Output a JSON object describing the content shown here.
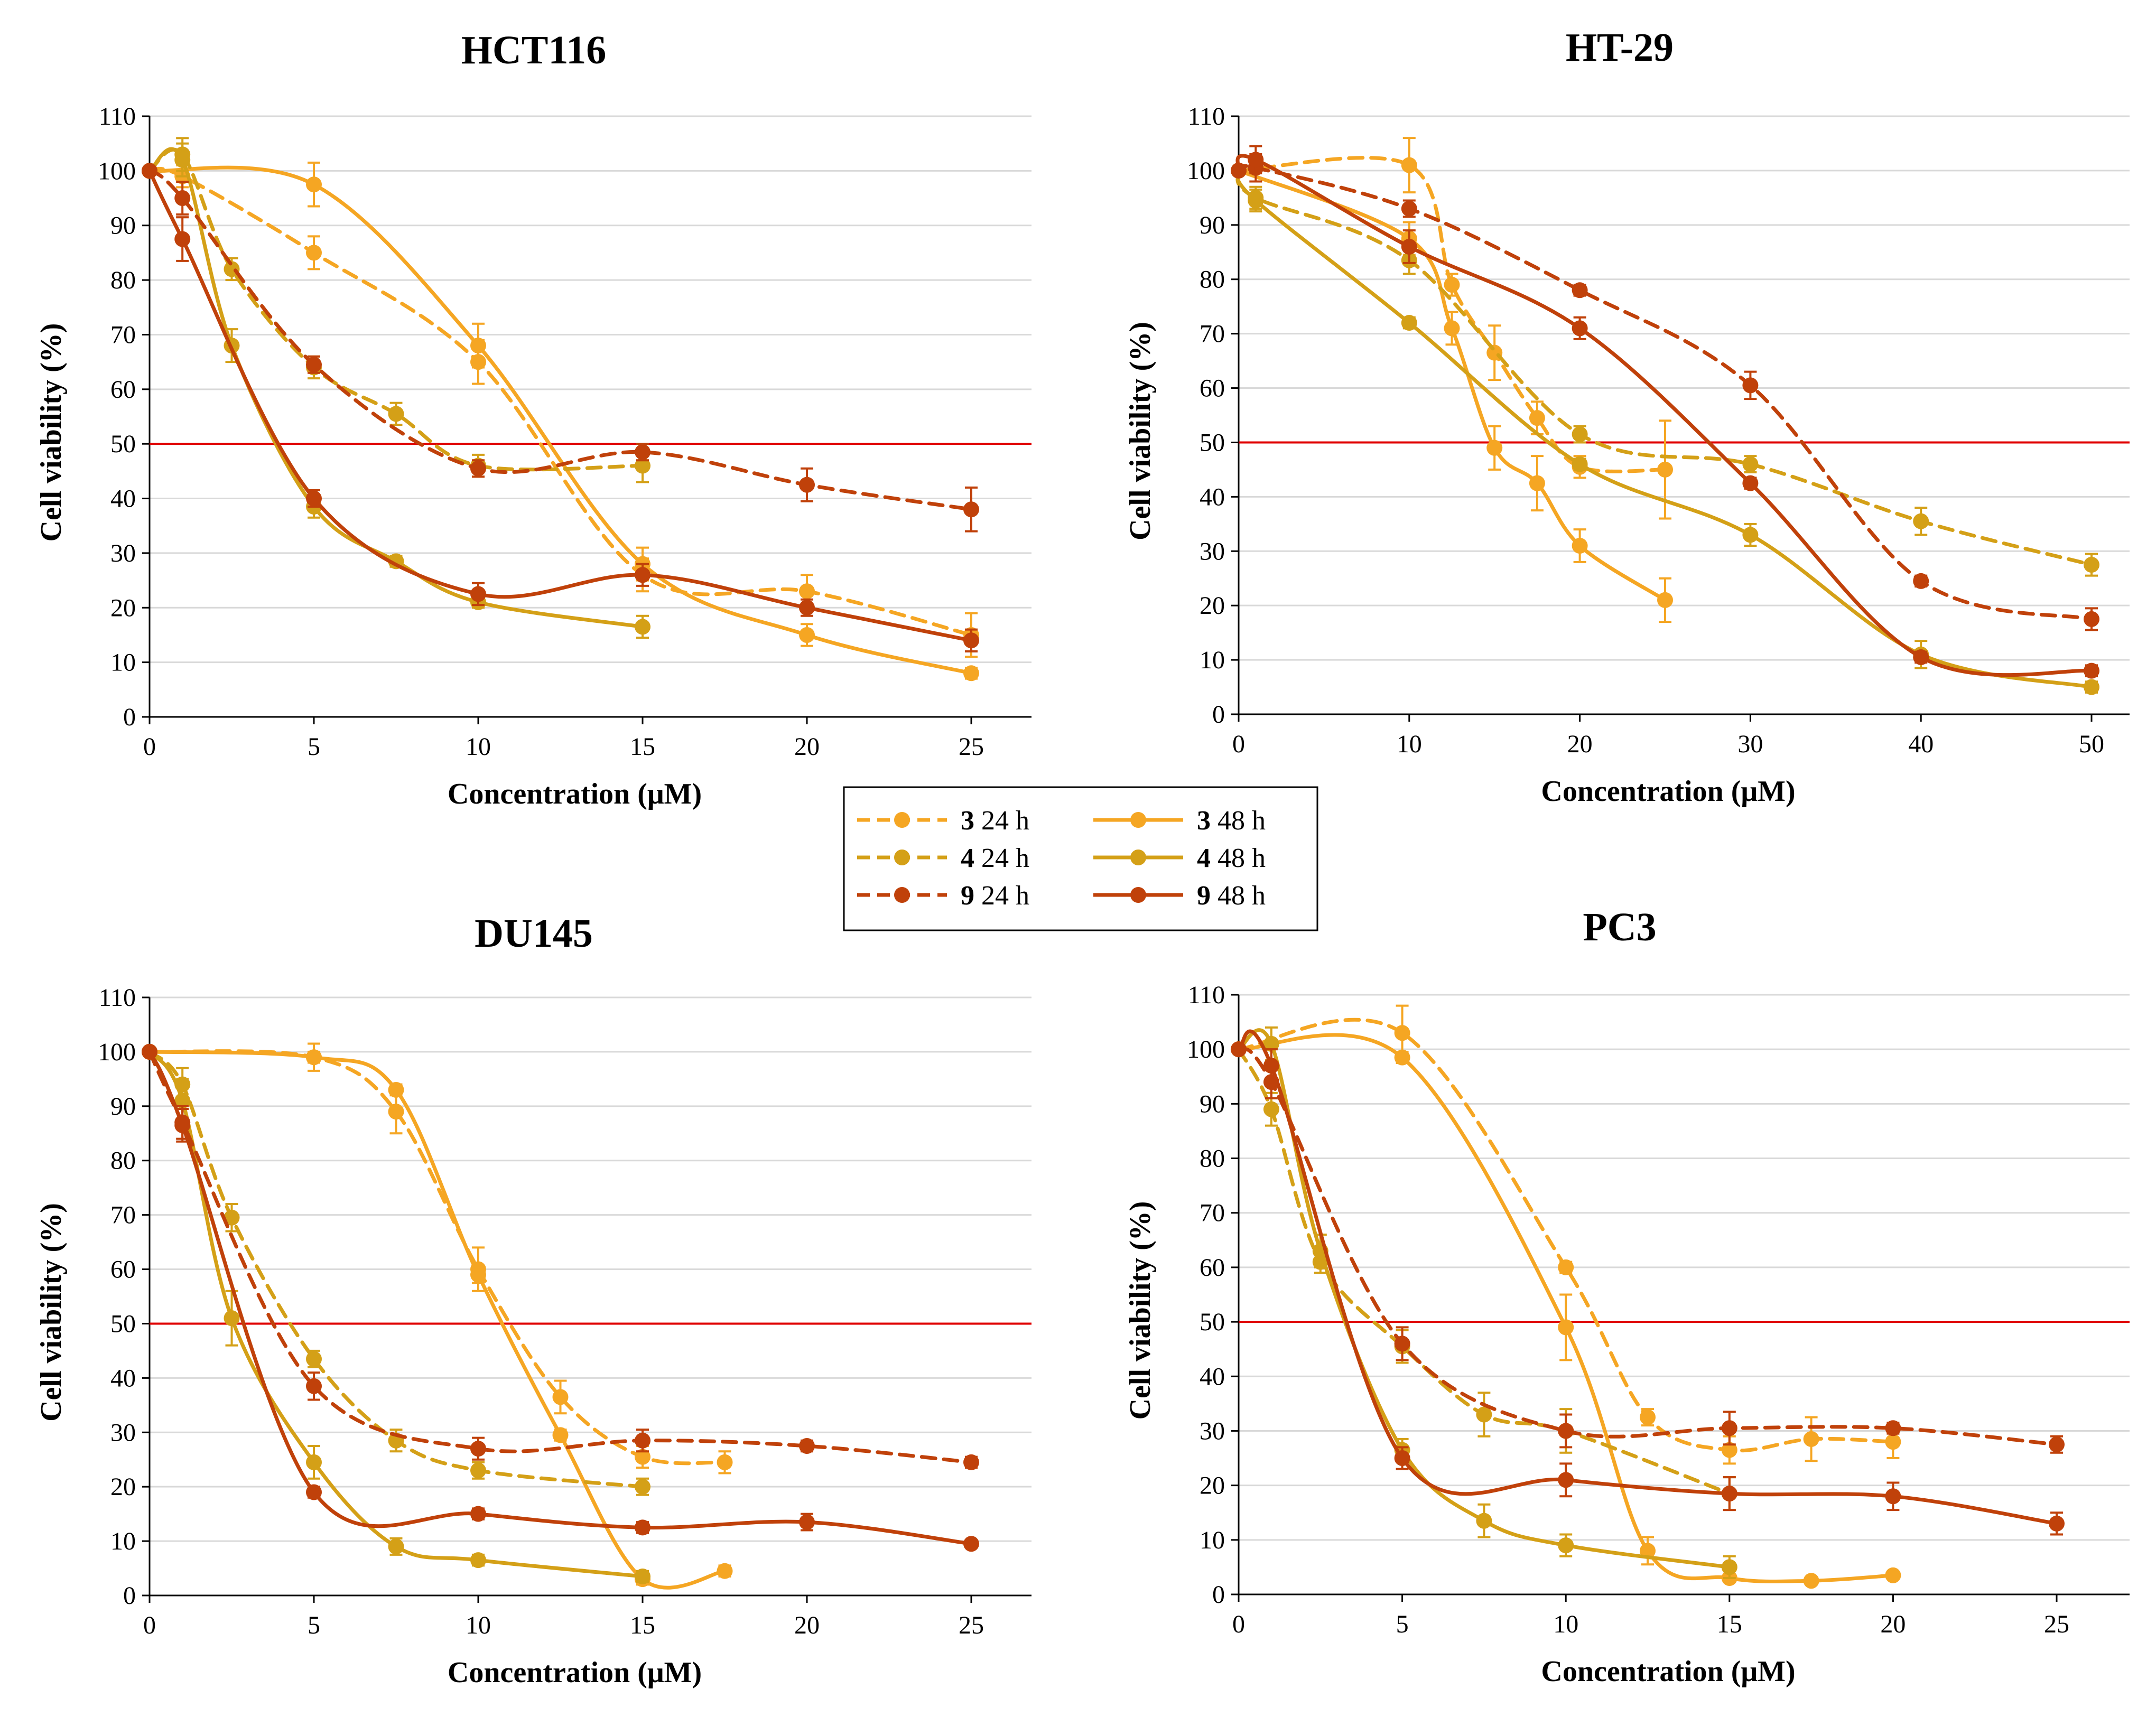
{
  "figure": {
    "legend": [
      {
        "compound": "3",
        "time": "24 h",
        "series_name": "3 24 h"
      },
      {
        "compound": "3",
        "time": "48 h",
        "series_name": "3 48 h"
      },
      {
        "compound": "4",
        "time": "24 h",
        "series_name": "4 24 h"
      },
      {
        "compound": "4",
        "time": "48 h",
        "series_name": "4 48 h"
      },
      {
        "compound": "9",
        "time": "24 h",
        "series_name": "9 24 h"
      },
      {
        "compound": "9",
        "time": "48 h",
        "series_name": "9 48 h"
      }
    ],
    "colors": {
      "c3": "#F5A623",
      "c4": "#D4A017",
      "c9": "#C0410A",
      "threshold": "#E00000",
      "grid": "#D9D9D9",
      "axis": "#000000"
    }
  },
  "chart_data": [
    {
      "type": "line",
      "title": "HCT116",
      "xlabel": "Concentration (μM)",
      "ylabel": "Cell viability (%)",
      "xlim": [
        0,
        27
      ],
      "ylim": [
        0,
        110
      ],
      "xticks": [
        0,
        5,
        10,
        15,
        20,
        25
      ],
      "yticks": [
        0,
        10,
        20,
        30,
        40,
        50,
        60,
        70,
        80,
        90,
        100,
        110
      ],
      "threshold": 50,
      "grid": "horizontal",
      "series": [
        {
          "name": "3 24 h",
          "compound": "3",
          "time": "24 h",
          "dash": "dashed",
          "color": "#F5A623",
          "x": [
            0,
            1,
            5,
            10,
            15,
            20,
            25
          ],
          "y": [
            100,
            99,
            85,
            65,
            26,
            23,
            15
          ],
          "err": [
            0,
            2,
            3,
            4,
            3,
            3,
            4
          ]
        },
        {
          "name": "3 48 h",
          "compound": "3",
          "time": "48 h",
          "dash": "solid",
          "color": "#F5A623",
          "x": [
            0,
            5,
            10,
            15,
            20,
            25
          ],
          "y": [
            100,
            97.5,
            68,
            28,
            15,
            8
          ],
          "err": [
            0,
            4,
            4,
            3,
            2,
            1
          ]
        },
        {
          "name": "4 24 h",
          "compound": "4",
          "time": "24 h",
          "dash": "dashed",
          "color": "#D4A017",
          "x": [
            0,
            1,
            2.5,
            5,
            7.5,
            10,
            15
          ],
          "y": [
            100,
            103,
            82,
            64,
            55.5,
            46,
            46
          ],
          "err": [
            0,
            3,
            2,
            2,
            2,
            2,
            3
          ]
        },
        {
          "name": "4 48 h",
          "compound": "4",
          "time": "48 h",
          "dash": "solid",
          "color": "#D4A017",
          "x": [
            0,
            1,
            2.5,
            5,
            7.5,
            10,
            15
          ],
          "y": [
            100,
            102,
            68,
            38.5,
            28.5,
            21,
            16.5
          ],
          "err": [
            0,
            3,
            3,
            2,
            1,
            1,
            2
          ]
        },
        {
          "name": "9 24 h",
          "compound": "9",
          "time": "24 h",
          "dash": "dashed",
          "color": "#C0410A",
          "x": [
            0,
            1,
            5,
            10,
            15,
            20,
            25
          ],
          "y": [
            100,
            95,
            64.5,
            45.5,
            48.5,
            42.5,
            38
          ],
          "err": [
            0,
            3,
            1.5,
            1.5,
            1.5,
            3,
            4
          ]
        },
        {
          "name": "9 48 h",
          "compound": "9",
          "time": "48 h",
          "dash": "solid",
          "color": "#C0410A",
          "x": [
            0,
            1,
            5,
            10,
            15,
            20,
            25
          ],
          "y": [
            100,
            87.5,
            40,
            22.5,
            26,
            20,
            14
          ],
          "err": [
            0,
            4,
            1.5,
            2,
            2,
            1.5,
            2
          ]
        }
      ]
    },
    {
      "type": "line",
      "title": "HT-29",
      "xlabel": "Concentration (μM)",
      "ylabel": "Cell viability (%)",
      "xlim": [
        0,
        52
      ],
      "ylim": [
        0,
        110
      ],
      "xticks": [
        0,
        10,
        20,
        30,
        40,
        50
      ],
      "yticks": [
        0,
        10,
        20,
        30,
        40,
        50,
        60,
        70,
        80,
        90,
        100,
        110
      ],
      "threshold": 50,
      "grid": "horizontal",
      "series": [
        {
          "name": "3 24 h",
          "compound": "3",
          "time": "24 h",
          "dash": "dashed",
          "color": "#F5A623",
          "x": [
            0,
            10,
            12.5,
            15,
            17.5,
            20,
            25
          ],
          "y": [
            100,
            101,
            79,
            66.5,
            54.5,
            45.5,
            45
          ],
          "err": [
            0,
            5,
            2,
            5,
            3,
            2,
            9
          ]
        },
        {
          "name": "3 48 h",
          "compound": "3",
          "time": "48 h",
          "dash": "solid",
          "color": "#F5A623",
          "x": [
            0,
            10,
            12.5,
            15,
            17.5,
            20,
            25
          ],
          "y": [
            100,
            87.5,
            71,
            49,
            42.5,
            31,
            21
          ],
          "err": [
            0,
            3,
            3,
            4,
            5,
            3,
            4
          ]
        },
        {
          "name": "4 24 h",
          "compound": "4",
          "time": "24 h",
          "dash": "dashed",
          "color": "#D4A017",
          "x": [
            0,
            1,
            10,
            20,
            30,
            40,
            50
          ],
          "y": [
            100,
            95,
            83.5,
            51.5,
            46,
            35.5,
            27.5
          ],
          "err": [
            0,
            2,
            2.5,
            1.5,
            1.5,
            2.5,
            2
          ]
        },
        {
          "name": "4 48 h",
          "compound": "4",
          "time": "48 h",
          "dash": "solid",
          "color": "#D4A017",
          "x": [
            0,
            1,
            10,
            20,
            30,
            40,
            50
          ],
          "y": [
            100,
            94.5,
            72,
            46,
            33,
            11,
            5
          ],
          "err": [
            0,
            2,
            1,
            1,
            2,
            2.5,
            1
          ]
        },
        {
          "name": "9 24 h",
          "compound": "9",
          "time": "24 h",
          "dash": "dashed",
          "color": "#C0410A",
          "x": [
            0,
            1,
            10,
            20,
            30,
            40,
            50
          ],
          "y": [
            100,
            100.5,
            93,
            78,
            60.5,
            24.5,
            17.5
          ],
          "err": [
            0,
            2.5,
            1.5,
            1,
            2.5,
            1,
            2
          ]
        },
        {
          "name": "9 48 h",
          "compound": "9",
          "time": "48 h",
          "dash": "solid",
          "color": "#C0410A",
          "x": [
            0,
            1,
            10,
            20,
            30,
            40,
            50
          ],
          "y": [
            100,
            102,
            86,
            71,
            42.5,
            10.5,
            8
          ],
          "err": [
            0,
            2.5,
            3,
            2,
            1,
            1,
            1
          ]
        }
      ]
    },
    {
      "type": "line",
      "title": "DU145",
      "xlabel": "Concentration (μM)",
      "ylabel": "Cell viability (%)",
      "xlim": [
        0,
        27
      ],
      "ylim": [
        0,
        110
      ],
      "xticks": [
        0,
        5,
        10,
        15,
        20,
        25
      ],
      "yticks": [
        0,
        10,
        20,
        30,
        40,
        50,
        60,
        70,
        80,
        90,
        100,
        110
      ],
      "threshold": 50,
      "grid": "horizontal",
      "series": [
        {
          "name": "3 24 h",
          "compound": "3",
          "time": "24 h",
          "dash": "dashed",
          "color": "#F5A623",
          "x": [
            0,
            5,
            7.5,
            10,
            12.5,
            15,
            17.5
          ],
          "y": [
            100,
            99,
            89,
            60,
            36.5,
            25.5,
            24.5
          ],
          "err": [
            0,
            2.5,
            4,
            4,
            3,
            2,
            2
          ]
        },
        {
          "name": "3 48 h",
          "compound": "3",
          "time": "48 h",
          "dash": "solid",
          "color": "#F5A623",
          "x": [
            0,
            5,
            7.5,
            10,
            12.5,
            15,
            17.5
          ],
          "y": [
            100,
            99,
            93,
            59,
            29.5,
            3,
            4.5
          ],
          "err": [
            0,
            1,
            1,
            1.5,
            1,
            1,
            1
          ]
        },
        {
          "name": "4 24 h",
          "compound": "4",
          "time": "24 h",
          "dash": "dashed",
          "color": "#D4A017",
          "x": [
            0,
            1,
            2.5,
            5,
            7.5,
            10,
            15
          ],
          "y": [
            100,
            94,
            69.5,
            43.5,
            28.5,
            23,
            20
          ],
          "err": [
            0,
            3,
            2.5,
            1.5,
            2,
            1.5,
            1.5
          ]
        },
        {
          "name": "4 48 h",
          "compound": "4",
          "time": "48 h",
          "dash": "solid",
          "color": "#D4A017",
          "x": [
            0,
            1,
            2.5,
            5,
            7.5,
            10,
            15
          ],
          "y": [
            100,
            91,
            51,
            24.5,
            9,
            6.5,
            3.5
          ],
          "err": [
            0,
            4,
            5,
            3,
            1.5,
            1,
            1
          ]
        },
        {
          "name": "9 24 h",
          "compound": "9",
          "time": "24 h",
          "dash": "dashed",
          "color": "#C0410A",
          "x": [
            0,
            1,
            5,
            10,
            15,
            20,
            25
          ],
          "y": [
            100,
            87,
            38.5,
            27,
            28.5,
            27.5,
            24.5
          ],
          "err": [
            0,
            3,
            2.5,
            2,
            2,
            1,
            1
          ]
        },
        {
          "name": "9 48 h",
          "compound": "9",
          "time": "48 h",
          "dash": "solid",
          "color": "#C0410A",
          "x": [
            0,
            1,
            5,
            10,
            15,
            20,
            25
          ],
          "y": [
            100,
            86.5,
            19,
            15,
            12.5,
            13.5,
            9.5
          ],
          "err": [
            0,
            3,
            1,
            1,
            1,
            1.5,
            0.5
          ]
        }
      ]
    },
    {
      "type": "line",
      "title": "PC3",
      "xlabel": "Concentration (μM)",
      "ylabel": "Cell viability (%)",
      "xlim": [
        0,
        27
      ],
      "ylim": [
        0,
        110
      ],
      "xticks": [
        0,
        5,
        10,
        15,
        20,
        25
      ],
      "yticks": [
        0,
        10,
        20,
        30,
        40,
        50,
        60,
        70,
        80,
        90,
        100,
        110
      ],
      "threshold": 50,
      "grid": "horizontal",
      "series": [
        {
          "name": "3 24 h",
          "compound": "3",
          "time": "24 h",
          "dash": "dashed",
          "color": "#F5A623",
          "x": [
            0,
            5,
            10,
            12.5,
            15,
            17.5,
            20
          ],
          "y": [
            100,
            103,
            60,
            32.5,
            26.5,
            28.5,
            28
          ],
          "err": [
            0,
            5,
            1,
            1.5,
            2.5,
            4,
            3
          ]
        },
        {
          "name": "3 48 h",
          "compound": "3",
          "time": "48 h",
          "dash": "solid",
          "color": "#F5A623",
          "x": [
            0,
            5,
            10,
            12.5,
            15,
            17.5,
            20
          ],
          "y": [
            100,
            98.5,
            49,
            8,
            3,
            2.5,
            3.5
          ],
          "err": [
            0,
            1,
            6,
            2.5,
            0.5,
            0.5,
            0.5
          ]
        },
        {
          "name": "4 24 h",
          "compound": "4",
          "time": "24 h",
          "dash": "dashed",
          "color": "#D4A017",
          "x": [
            0,
            1,
            2.5,
            5,
            7.5,
            10,
            15
          ],
          "y": [
            100,
            89,
            61,
            45.5,
            33,
            30,
            18.5
          ],
          "err": [
            0,
            3,
            2,
            3,
            4,
            4,
            3
          ]
        },
        {
          "name": "4 48 h",
          "compound": "4",
          "time": "48 h",
          "dash": "solid",
          "color": "#D4A017",
          "x": [
            0,
            1,
            2.5,
            5,
            7.5,
            10,
            15
          ],
          "y": [
            100,
            101,
            63,
            26.5,
            13.5,
            9,
            5
          ],
          "err": [
            0,
            3,
            3,
            2,
            3,
            2,
            2
          ]
        },
        {
          "name": "9 24 h",
          "compound": "9",
          "time": "24 h",
          "dash": "dashed",
          "color": "#C0410A",
          "x": [
            0,
            1,
            5,
            10,
            15,
            20,
            25
          ],
          "y": [
            100,
            94,
            46,
            30,
            30.5,
            30.5,
            27.5
          ],
          "err": [
            0,
            3,
            3,
            3,
            3,
            1,
            1.5
          ]
        },
        {
          "name": "9 48 h",
          "compound": "9",
          "time": "48 h",
          "dash": "solid",
          "color": "#C0410A",
          "x": [
            0,
            1,
            5,
            10,
            15,
            20,
            25
          ],
          "y": [
            100,
            97,
            25,
            21,
            18.5,
            18,
            13
          ],
          "err": [
            0,
            3,
            2,
            3,
            3,
            2.5,
            2
          ]
        }
      ]
    }
  ]
}
